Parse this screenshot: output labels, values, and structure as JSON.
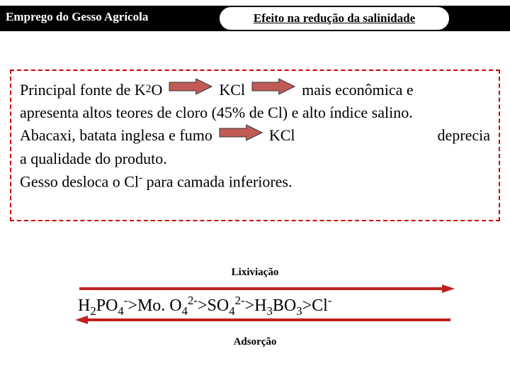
{
  "header": {
    "left": "Emprego do Gesso Agrícola",
    "badge": "Efeito na redução da salinidade"
  },
  "main": {
    "k2o_prefix": "Principal fonte de K",
    "k2o_sub": "2",
    "k2o_suffix": "O",
    "kcl": "KCl",
    "line1_tail": "mais econômica e",
    "line2": "apresenta altos teores de cloro (45% de Cl) e alto índice salino.",
    "line3_a": "Abacaxi, batata inglesa e fumo",
    "line3_b": "KCl",
    "line3_c": "deprecia",
    "line4": "a qualidade do produto.",
    "line5_a": "Gesso desloca o Cl",
    "line5_sup": "-",
    "line5_b": " para camada inferiores."
  },
  "lix": "Lixiviação",
  "ads": "Adsorção",
  "seq": {
    "parts": [
      {
        "t": "H"
      },
      {
        "t": "2",
        "cls": "sub"
      },
      {
        "t": "PO"
      },
      {
        "t": "4",
        "cls": "sub"
      },
      {
        "t": "-",
        "cls": "sup"
      },
      {
        "t": ">Mo. O"
      },
      {
        "t": "4",
        "cls": "sub"
      },
      {
        "t": "2-",
        "cls": "sup"
      },
      {
        "t": ">SO"
      },
      {
        "t": "4",
        "cls": "sub"
      },
      {
        "t": "2-",
        "cls": "sup"
      },
      {
        "t": ">H"
      },
      {
        "t": "3",
        "cls": "sub"
      },
      {
        "t": "BO"
      },
      {
        "t": "3",
        "cls": "sub"
      },
      {
        "t": ">Cl"
      },
      {
        "t": "-",
        "cls": "sup"
      }
    ]
  },
  "style": {
    "arrow_fill": "#c15a54",
    "arrow_stroke": "#333333",
    "long_arrow_color": "#c02020",
    "dashed_border": "#cc0000",
    "small_arrow_w": 64,
    "small_arrow_h": 24,
    "long_arrow_w": 540,
    "long_arrow_h": 14
  }
}
